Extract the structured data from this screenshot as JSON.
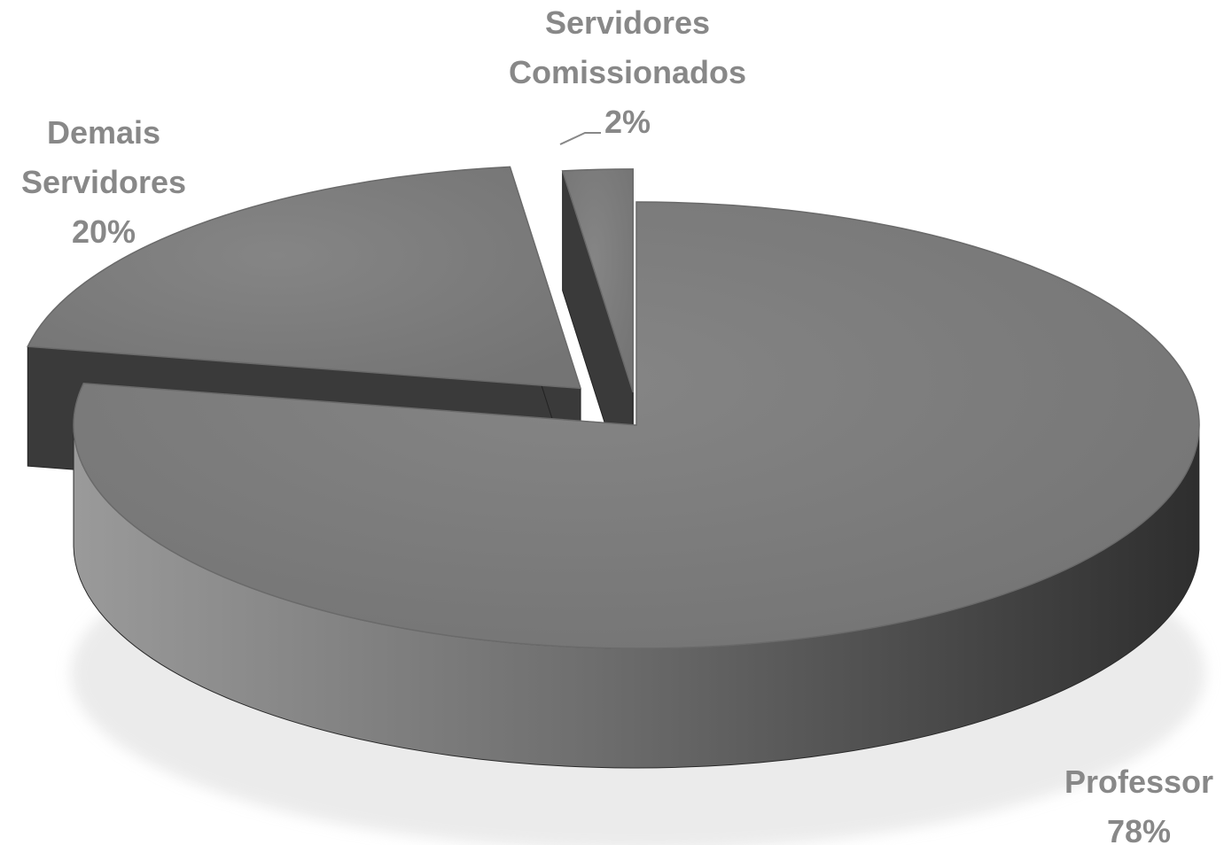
{
  "chart_data": {
    "type": "pie",
    "style": "3d-exploded",
    "categories": [
      "Professor",
      "Demais Servidores",
      "Servidores Comissionados"
    ],
    "values": [
      78,
      20,
      2
    ],
    "value_labels": [
      "78%",
      "20%",
      "2%"
    ],
    "label_lines": [
      [
        "Professor"
      ],
      [
        "Demais",
        "Servidores"
      ],
      [
        "Servidores",
        "Comissionados"
      ]
    ],
    "legend": "none",
    "colors": {
      "top": "#7d7d7d",
      "side": "#3a3a3a",
      "side_light": "#8a8a8a",
      "label": "#888888",
      "leader_line": "#888888"
    }
  }
}
